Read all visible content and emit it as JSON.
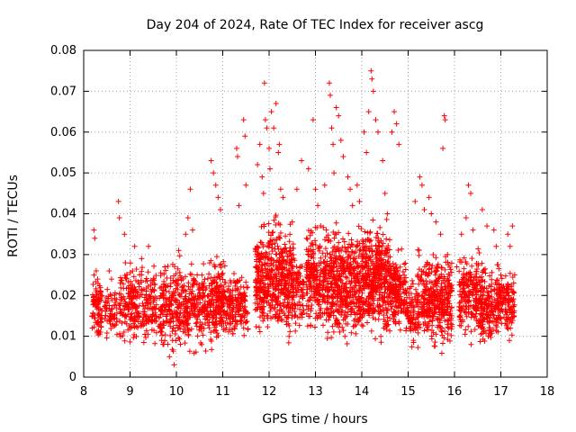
{
  "chart_data": {
    "type": "scatter",
    "title": "Day 204 of 2024, Rate Of TEC Index for receiver ascg",
    "xlabel": "GPS time / hours",
    "ylabel": "ROTI / TECUs",
    "xlim": [
      8,
      18
    ],
    "ylim": [
      0,
      0.08
    ],
    "xticks": [
      "8",
      "9",
      "10",
      "11",
      "12",
      "13",
      "14",
      "15",
      "16",
      "17",
      "18"
    ],
    "yticks": [
      "0",
      "0.01",
      "0.02",
      "0.03",
      "0.04",
      "0.05",
      "0.06",
      "0.07",
      "0.08"
    ],
    "grid": true,
    "legend": "none",
    "marker": "+",
    "color": "#ff0000",
    "series": [
      {
        "name": "ROTI",
        "x": [
          8.22,
          8.24,
          8.27,
          8.3,
          8.35,
          8.55,
          8.6,
          8.75,
          8.77,
          8.88,
          8.9,
          9.1,
          9.25,
          9.4,
          9.5,
          9.65,
          9.68,
          9.75,
          9.78,
          9.85,
          9.95,
          10.05,
          10.2,
          10.25,
          10.3,
          10.35,
          10.55,
          10.75,
          10.8,
          10.85,
          10.9,
          10.95,
          11.3,
          11.32,
          11.35,
          11.45,
          11.48,
          11.5,
          11.75,
          11.8,
          11.85,
          11.88,
          11.9,
          11.92,
          11.95,
          12.0,
          12.02,
          12.05,
          12.1,
          12.15,
          12.2,
          12.22,
          12.25,
          12.3,
          12.5,
          12.6,
          12.7,
          12.85,
          12.95,
          13.0,
          13.05,
          13.2,
          13.3,
          13.32,
          13.35,
          13.38,
          13.4,
          13.45,
          13.5,
          13.55,
          13.6,
          13.7,
          13.75,
          13.8,
          13.9,
          13.95,
          14.05,
          14.1,
          14.15,
          14.2,
          14.22,
          14.25,
          14.3,
          14.35,
          14.45,
          14.5,
          14.55,
          14.65,
          14.7,
          14.75,
          14.8,
          15.15,
          15.25,
          15.3,
          15.35,
          15.45,
          15.5,
          15.6,
          15.7,
          15.75,
          15.78,
          15.8,
          15.85,
          16.05,
          16.15,
          16.25,
          16.3,
          16.35,
          16.4,
          16.6,
          16.7,
          16.85,
          16.9,
          17.0,
          17.15,
          17.2,
          17.25
        ],
        "y": [
          0.036,
          0.034,
          0.026,
          0.024,
          0.021,
          0.026,
          0.024,
          0.043,
          0.039,
          0.035,
          0.028,
          0.032,
          0.029,
          0.032,
          0.024,
          0.012,
          0.009,
          0.027,
          0.021,
          0.005,
          0.003,
          0.031,
          0.035,
          0.039,
          0.046,
          0.036,
          0.025,
          0.053,
          0.05,
          0.047,
          0.044,
          0.041,
          0.056,
          0.054,
          0.042,
          0.063,
          0.059,
          0.047,
          0.052,
          0.057,
          0.049,
          0.045,
          0.072,
          0.063,
          0.061,
          0.056,
          0.051,
          0.065,
          0.061,
          0.067,
          0.055,
          0.057,
          0.046,
          0.044,
          0.038,
          0.046,
          0.053,
          0.051,
          0.063,
          0.046,
          0.042,
          0.047,
          0.072,
          0.069,
          0.061,
          0.057,
          0.05,
          0.066,
          0.064,
          0.058,
          0.054,
          0.049,
          0.046,
          0.042,
          0.047,
          0.043,
          0.06,
          0.055,
          0.065,
          0.075,
          0.073,
          0.07,
          0.063,
          0.06,
          0.053,
          0.045,
          0.04,
          0.06,
          0.065,
          0.062,
          0.057,
          0.043,
          0.049,
          0.047,
          0.041,
          0.044,
          0.04,
          0.038,
          0.035,
          0.056,
          0.064,
          0.063,
          0.03,
          0.027,
          0.035,
          0.039,
          0.047,
          0.045,
          0.036,
          0.041,
          0.037,
          0.036,
          0.032,
          0.025,
          0.035,
          0.032,
          0.037
        ]
      }
    ],
    "dense_bands": [
      {
        "start": 8.18,
        "end": 8.4,
        "low": 0.007,
        "high": 0.027,
        "count": 90
      },
      {
        "start": 8.45,
        "end": 8.72,
        "low": 0.008,
        "high": 0.024,
        "count": 60
      },
      {
        "start": 8.75,
        "end": 9.58,
        "low": 0.006,
        "high": 0.03,
        "count": 280
      },
      {
        "start": 9.62,
        "end": 10.72,
        "low": 0.004,
        "high": 0.031,
        "count": 420
      },
      {
        "start": 10.72,
        "end": 11.05,
        "low": 0.005,
        "high": 0.032,
        "count": 170
      },
      {
        "start": 11.05,
        "end": 11.55,
        "low": 0.007,
        "high": 0.028,
        "count": 170
      },
      {
        "start": 11.7,
        "end": 12.55,
        "low": 0.006,
        "high": 0.042,
        "count": 520
      },
      {
        "start": 12.55,
        "end": 12.75,
        "low": 0.008,
        "high": 0.033,
        "count": 70
      },
      {
        "start": 12.8,
        "end": 13.12,
        "low": 0.008,
        "high": 0.04,
        "count": 180
      },
      {
        "start": 13.15,
        "end": 14.02,
        "low": 0.006,
        "high": 0.04,
        "count": 520
      },
      {
        "start": 14.02,
        "end": 14.62,
        "low": 0.006,
        "high": 0.042,
        "count": 420
      },
      {
        "start": 14.62,
        "end": 14.95,
        "low": 0.008,
        "high": 0.033,
        "count": 170
      },
      {
        "start": 14.95,
        "end": 15.2,
        "low": 0.006,
        "high": 0.026,
        "count": 80
      },
      {
        "start": 15.2,
        "end": 15.95,
        "low": 0.005,
        "high": 0.033,
        "count": 380
      },
      {
        "start": 16.1,
        "end": 16.55,
        "low": 0.007,
        "high": 0.033,
        "count": 200
      },
      {
        "start": 16.55,
        "end": 17.0,
        "low": 0.005,
        "high": 0.03,
        "count": 200
      },
      {
        "start": 17.0,
        "end": 17.3,
        "low": 0.007,
        "high": 0.03,
        "count": 110
      }
    ]
  }
}
